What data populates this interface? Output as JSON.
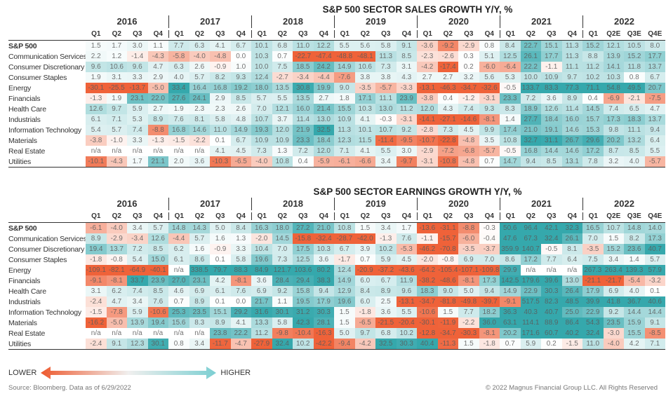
{
  "colors": {
    "negative": "#ee5a2f",
    "positive": "#2aa3a8"
  },
  "columns": {
    "years": [
      {
        "label": "2016",
        "quarters": [
          "Q1",
          "Q2",
          "Q3",
          "Q4"
        ]
      },
      {
        "label": "2017",
        "quarters": [
          "Q1",
          "Q2",
          "Q3",
          "Q4"
        ]
      },
      {
        "label": "2018",
        "quarters": [
          "Q1",
          "Q2",
          "Q3",
          "Q4"
        ]
      },
      {
        "label": "2019",
        "quarters": [
          "Q1",
          "Q2",
          "Q3",
          "Q4"
        ]
      },
      {
        "label": "2020",
        "quarters": [
          "Q1",
          "Q2",
          "Q3",
          "Q4"
        ]
      },
      {
        "label": "2021",
        "quarters": [
          "Q1",
          "Q2",
          "Q3",
          "Q4"
        ]
      },
      {
        "label": "2022",
        "quarters": [
          "Q1",
          "Q2E",
          "Q3E",
          "Q4E"
        ]
      }
    ]
  },
  "chart_data": [
    {
      "type": "heatmap",
      "title": "S&P 500 SECTOR SALES GROWTH Y/Y, %",
      "rows": [
        {
          "label": "S&P 500",
          "bold": true,
          "values": [
            "1.5",
            "1.7",
            "3.0",
            "1.1",
            "7.7",
            "6.3",
            "4.1",
            "6.7",
            "10.1",
            "6.8",
            "11.0",
            "12.2",
            "5.5",
            "5.6",
            "5.8",
            "9.1",
            "-3.6",
            "-9.2",
            "-2.9",
            "0.8",
            "8.4",
            "22.7",
            "15.1",
            "11.3",
            "15.2",
            "12.1",
            "10.5",
            "8.0"
          ]
        },
        {
          "label": "Communication Services",
          "values": [
            "2.2",
            "1.2",
            "-1.4",
            "-4.3",
            "-5.8",
            "-4.0",
            "-4.8",
            "0.0",
            "10.3",
            "0.7",
            "-22.7",
            "-47.4",
            "-48.8",
            "-48.1",
            "11.3",
            "8.5",
            "-2.3",
            "-2.6",
            "0.3",
            "5.1",
            "12.5",
            "26.1",
            "17.7",
            "11.3",
            "8.8",
            "13.9",
            "15.2",
            "17.7"
          ]
        },
        {
          "label": "Consumer Discretionary",
          "values": [
            "9.6",
            "10.6",
            "9.6",
            "4.7",
            "6.3",
            "2.6",
            "-0.9",
            "1.0",
            "10.0",
            "7.5",
            "18.5",
            "24.2",
            "14.9",
            "10.6",
            "7.3",
            "3.1",
            "-4.2",
            "-17.4",
            "0.2",
            "-6.0",
            "-6.4",
            "22.2",
            "-1.1",
            "11.1",
            "11.2",
            "14.1",
            "11.8",
            "13.7"
          ]
        },
        {
          "label": "Consumer Staples",
          "values": [
            "1.9",
            "3.1",
            "3.3",
            "2.9",
            "4.0",
            "5.7",
            "8.2",
            "9.3",
            "12.4",
            "-2.7",
            "-3.4",
            "-4.4",
            "-7.6",
            "3.8",
            "3.8",
            "4.3",
            "2.7",
            "2.7",
            "3.2",
            "5.6",
            "5.3",
            "10.0",
            "10.9",
            "9.7",
            "10.2",
            "10.3",
            "0.8",
            "6.7"
          ]
        },
        {
          "label": "Energy",
          "values": [
            "-30.1",
            "-25.5",
            "-13.7",
            "-5.0",
            "33.4",
            "16.4",
            "16.8",
            "19.2",
            "18.0",
            "13.5",
            "30.8",
            "19.9",
            "9.0",
            "-3.5",
            "-5.7",
            "-3.3",
            "-13.1",
            "-46.3",
            "-34.7",
            "-32.6",
            "-0.5",
            "133.7",
            "83.3",
            "77.3",
            "71.1",
            "54.8",
            "49.5",
            "20.7"
          ]
        },
        {
          "label": "Financials",
          "values": [
            "-1.3",
            "1.9",
            "23.1",
            "22.0",
            "27.6",
            "24.1",
            "2.9",
            "8.5",
            "5.7",
            "5.5",
            "13.5",
            "2.7",
            "1.8",
            "17.1",
            "11.1",
            "23.9",
            "-3.8",
            "0.4",
            "-1.2",
            "-3.1",
            "23.3",
            "7.2",
            "3.6",
            "8.9",
            "0.4",
            "-6.9",
            "-2.1",
            "-7.5"
          ]
        },
        {
          "label": "Health Care",
          "values": [
            "12.6",
            "9.7",
            "5.9",
            "2.7",
            "1.9",
            "2.3",
            "2.3",
            "2.6",
            "7.0",
            "12.1",
            "16.0",
            "21.4",
            "15.5",
            "10.3",
            "13.0",
            "11.2",
            "12.0",
            "4.3",
            "7.4",
            "9.3",
            "8.3",
            "18.9",
            "12.6",
            "11.4",
            "14.5",
            "7.4",
            "6.5",
            "4.7"
          ]
        },
        {
          "label": "Industrials",
          "values": [
            "6.1",
            "7.1",
            "5.3",
            "8.9",
            "7.6",
            "8.1",
            "5.8",
            "4.8",
            "10.7",
            "3.7",
            "11.4",
            "13.0",
            "10.9",
            "4.1",
            "-0.3",
            "-3.1",
            "-14.1",
            "-27.1",
            "-14.6",
            "-8.1",
            "1.4",
            "27.7",
            "18.4",
            "16.0",
            "15.7",
            "17.3",
            "18.3",
            "13.7"
          ]
        },
        {
          "label": "Information Technology",
          "values": [
            "5.4",
            "5.7",
            "7.4",
            "-8.8",
            "16.8",
            "14.6",
            "11.0",
            "14.9",
            "19.3",
            "12.0",
            "21.9",
            "32.5",
            "11.3",
            "10.1",
            "10.7",
            "9.2",
            "-2.8",
            "7.3",
            "4.5",
            "9.9",
            "17.4",
            "21.0",
            "19.1",
            "14.6",
            "15.3",
            "9.8",
            "11.1",
            "9.4"
          ]
        },
        {
          "label": "Materials",
          "values": [
            "-3.8",
            "-1.0",
            "3.3",
            "-1.3",
            "-1.5",
            "-2.2",
            "0.1",
            "6.7",
            "10.9",
            "10.9",
            "23.3",
            "18.4",
            "12.3",
            "11.5",
            "-11.4",
            "-9.5",
            "-10.7",
            "-22.8",
            "-4.8",
            "3.5",
            "10.8",
            "32.7",
            "31.1",
            "26.7",
            "29.6",
            "20.2",
            "13.2",
            "6.4"
          ]
        },
        {
          "label": "Real Estate",
          "values": [
            "n/a",
            "n/a",
            "n/a",
            "n/a",
            "n/a",
            "n/a",
            "4.1",
            "4.5",
            "7.3",
            "1.3",
            "7.2",
            "12.0",
            "7.1",
            "4.1",
            "5.5",
            "3.0",
            "-2.9",
            "-7.2",
            "-6.8",
            "-5.7",
            "-0.5",
            "16.8",
            "14.4",
            "14.6",
            "17.2",
            "8.7",
            "8.5",
            "5.5"
          ]
        },
        {
          "label": "Utilities",
          "values": [
            "-10.1",
            "-4.3",
            "1.7",
            "21.1",
            "2.0",
            "3.6",
            "-10.3",
            "-6.5",
            "-4.0",
            "10.8",
            "0.4",
            "-5.9",
            "-6.1",
            "-6.6",
            "3.4",
            "-9.7",
            "-3.1",
            "-10.8",
            "-4.8",
            "0.7",
            "14.7",
            "9.4",
            "8.5",
            "13.1",
            "7.8",
            "3.2",
            "4.0",
            "-5.7"
          ]
        }
      ]
    },
    {
      "type": "heatmap",
      "title": "S&P 500 SECTOR EARNINGS GROWTH Y/Y, %",
      "rows": [
        {
          "label": "S&P 500",
          "bold": true,
          "values": [
            "-6.1",
            "-4.0",
            "3.4",
            "5.7",
            "14.8",
            "14.3",
            "5.0",
            "8.4",
            "16.3",
            "18.0",
            "27.2",
            "21.0",
            "10.8",
            "1.5",
            "3.4",
            "1.7",
            "-13.6",
            "-31.1",
            "-8.8",
            "-0.3",
            "50.6",
            "96.4",
            "42.1",
            "32.3",
            "16.5",
            "10.7",
            "14.8",
            "14.0"
          ]
        },
        {
          "label": "Communication Services",
          "values": [
            "8.9",
            "-2.9",
            "-3.4",
            "12.6",
            "-4.4",
            "5.7",
            "1.6",
            "1.3",
            "-2.0",
            "14.5",
            "-15.8",
            "-32.4",
            "-28.7",
            "-42.0",
            "-1.3",
            "7.6",
            "-1.1",
            "-15.7",
            "-6.0",
            "-0.4",
            "47.6",
            "67.3",
            "32.4",
            "26.1",
            "7.0",
            "1.5",
            "8.2",
            "17.3"
          ]
        },
        {
          "label": "Consumer Discretionary",
          "values": [
            "19.4",
            "13.7",
            "7.2",
            "8.5",
            "6.2",
            "1.6",
            "-0.9",
            "3.3",
            "10.4",
            "7.0",
            "17.5",
            "10.3",
            "6.7",
            "3.9",
            "10.2",
            "-5.3",
            "-46.2",
            "-70.8",
            "-3.5",
            "-3.7",
            "359.9",
            "140.7",
            "-0.5",
            "8.1",
            "-3.5",
            "15.2",
            "23.6",
            "40.7"
          ]
        },
        {
          "label": "Consumer Staples",
          "values": [
            "-1.8",
            "-0.8",
            "5.4",
            "15.0",
            "6.1",
            "8.6",
            "0.1",
            "5.8",
            "19.6",
            "7.3",
            "12.5",
            "3.6",
            "-1.7",
            "0.7",
            "5.9",
            "4.5",
            "-2.0",
            "-0.8",
            "6.9",
            "7.0",
            "8.6",
            "17.2",
            "7.7",
            "6.4",
            "7.5",
            "3.4",
            "1.4",
            "5.7"
          ]
        },
        {
          "label": "Energy",
          "values": [
            "-109.1",
            "-82.1",
            "-64.9",
            "-40.1",
            "n/a",
            "338.5",
            "79.7",
            "88.3",
            "84.9",
            "121.7",
            "103.6",
            "80.2",
            "12.4",
            "-20.9",
            "-37.2",
            "-43.6",
            "-64.2",
            "-105.4",
            "-107.1",
            "-109.8",
            "29.9",
            "n/a",
            "n/a",
            "n/a",
            "267.3",
            "263.4",
            "139.3",
            "57.9"
          ]
        },
        {
          "label": "Financials",
          "values": [
            "-9.1",
            "-8.1",
            "33.7",
            "23.9",
            "27.0",
            "23.1",
            "4.2",
            "-8.1",
            "3.6",
            "28.4",
            "29.4",
            "38.3",
            "14.9",
            "6.0",
            "6.7",
            "11.9",
            "-38.2",
            "-48.6",
            "-8.1",
            "17.3",
            "142.5",
            "179.6",
            "39.6",
            "13.0",
            "-21.1",
            "-21.7",
            "-5.4",
            "-3.2"
          ]
        },
        {
          "label": "Health Care",
          "values": [
            "3.1",
            "6.2",
            "7.4",
            "8.5",
            "4.6",
            "6.9",
            "6.1",
            "7.6",
            "6.9",
            "9.2",
            "15.8",
            "9.4",
            "12.9",
            "8.4",
            "8.9",
            "9.6",
            "18.3",
            "9.0",
            "5.0",
            "9.4",
            "14.9",
            "22.9",
            "30.3",
            "26.4",
            "17.9",
            "6.9",
            "4.0",
            "0.1"
          ]
        },
        {
          "label": "Industrials",
          "values": [
            "-2.4",
            "4.7",
            "3.4",
            "7.6",
            "0.7",
            "8.9",
            "0.1",
            "0.0",
            "21.7",
            "1.1",
            "19.5",
            "17.9",
            "19.6",
            "6.0",
            "2.5",
            "-13.1",
            "-34.7",
            "-81.8",
            "-49.8",
            "-39.7",
            "-9.1",
            "517.5",
            "82.3",
            "48.5",
            "39.9",
            "41.8",
            "36.7",
            "40.6"
          ]
        },
        {
          "label": "Information Technology",
          "values": [
            "-1.5",
            "-7.8",
            "5.9",
            "-10.6",
            "25.3",
            "23.5",
            "15.1",
            "29.2",
            "31.6",
            "30.1",
            "31.2",
            "30.3",
            "1.5",
            "-1.8",
            "3.6",
            "5.5",
            "-10.6",
            "1.5",
            "7.7",
            "18.2",
            "36.3",
            "40.3",
            "40.7",
            "25.0",
            "22.9",
            "9.2",
            "14.4",
            "14.4"
          ]
        },
        {
          "label": "Materials",
          "values": [
            "-16.2",
            "-5.0",
            "13.9",
            "19.4",
            "15.6",
            "8.3",
            "8.9",
            "4.1",
            "13.3",
            "5.8",
            "42.3",
            "28.1",
            "1.5",
            "-6.5",
            "-21.5",
            "-20.4",
            "-30.1",
            "-11.9",
            "-2.2",
            "36.0",
            "63.1",
            "114.1",
            "88.9",
            "86.4",
            "54.3",
            "23.5",
            "15.9",
            "9.1"
          ]
        },
        {
          "label": "Real Estate",
          "values": [
            "n/a",
            "n/a",
            "n/a",
            "n/a",
            "n/a",
            "n/a",
            "23.8",
            "22.2",
            "11.2",
            "-9.8",
            "-10.4",
            "-16.3",
            "5.0",
            "9.7",
            "6.8",
            "10.2",
            "-12.8",
            "-34.7",
            "-30.3",
            "-8.1",
            "20.2",
            "171.6",
            "60.7",
            "40.2",
            "32.4",
            "-3.0",
            "15.5",
            "-8.5"
          ]
        },
        {
          "label": "Utilities",
          "values": [
            "-2.4",
            "9.1",
            "12.3",
            "30.1",
            "0.8",
            "3.4",
            "-11.7",
            "-4.7",
            "-27.9",
            "32.4",
            "10.2",
            "-42.2",
            "-9.4",
            "-4.2",
            "32.5",
            "30.3",
            "40.4",
            "-11.3",
            "1.5",
            "-1.8",
            "0.7",
            "5.9",
            "0.2",
            "-1.5",
            "11.0",
            "-4.0",
            "4.2",
            "7.1"
          ]
        }
      ]
    }
  ],
  "legend": {
    "lower": "LOWER",
    "higher": "HIGHER"
  },
  "footer": {
    "source": "Source: Bloomberg. Data as of 6/29/2022",
    "copyright": "© 2022 Magnus Financial Group LLC. All Rights Reserved"
  }
}
